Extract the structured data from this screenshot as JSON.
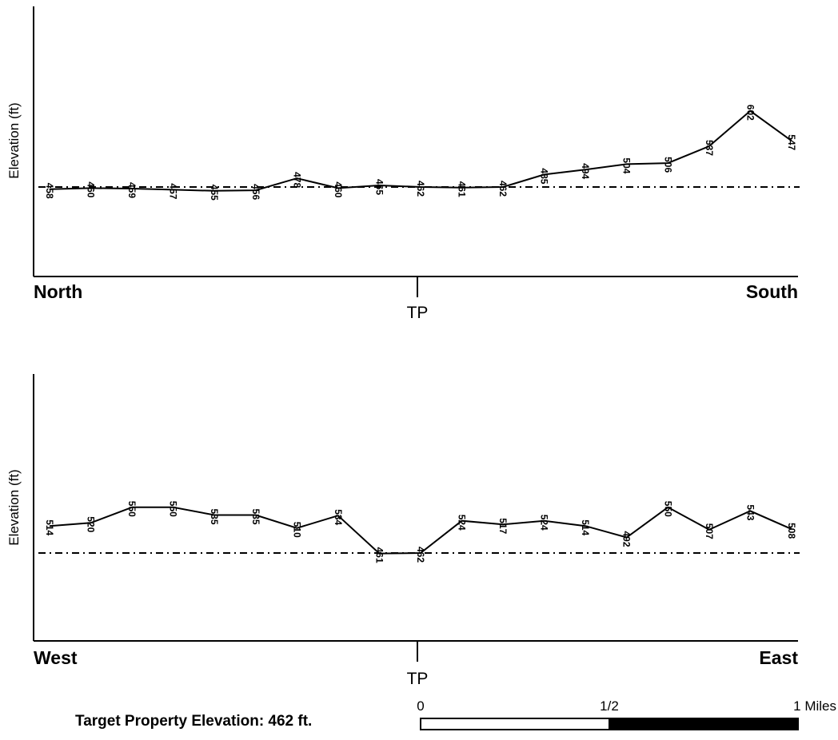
{
  "chart_data": [
    {
      "type": "line",
      "ylabel": "Elevation (ft)",
      "start_label": "North",
      "end_label": "South",
      "center_label": "TP",
      "reference_elevation": 462,
      "values": [
        458,
        460,
        459,
        457,
        455,
        456,
        478,
        460,
        465,
        462,
        461,
        462,
        485,
        494,
        504,
        506,
        537,
        602,
        547
      ]
    },
    {
      "type": "line",
      "ylabel": "Elevation (ft)",
      "start_label": "West",
      "end_label": "East",
      "center_label": "TP",
      "reference_elevation": 462,
      "values": [
        514,
        520,
        550,
        550,
        535,
        535,
        510,
        534,
        461,
        462,
        524,
        517,
        524,
        514,
        492,
        550,
        507,
        543,
        508
      ]
    }
  ],
  "footer": {
    "target_elevation_text": "Target Property Elevation: 462 ft.",
    "scale": {
      "label_0": "0",
      "label_half": "1/2",
      "label_1": "1 Miles"
    }
  }
}
